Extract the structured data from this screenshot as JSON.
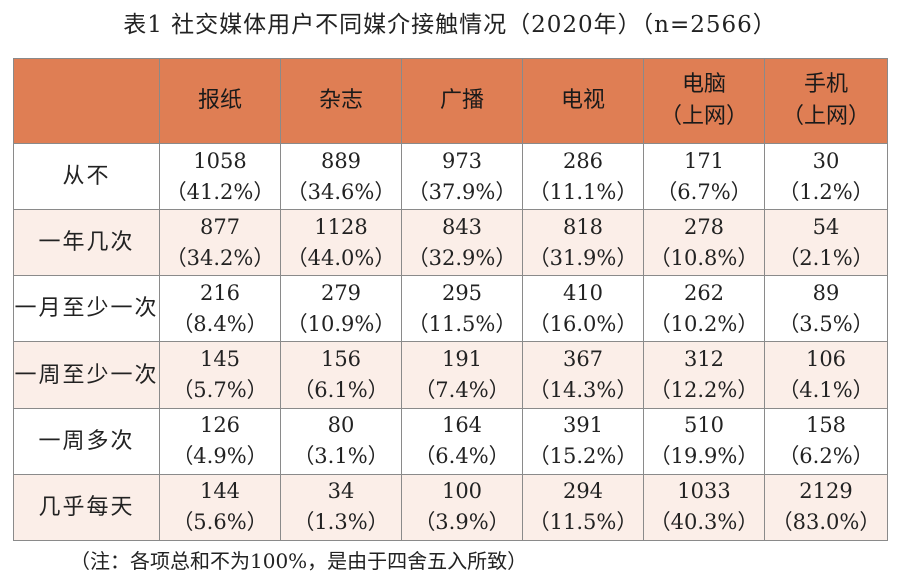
{
  "title": "表1  社交媒体用户不同媒介接触情况（2020年）（n=2566）",
  "columns": [
    {
      "line1": "报纸",
      "line2": ""
    },
    {
      "line1": "杂志",
      "line2": ""
    },
    {
      "line1": "广播",
      "line2": ""
    },
    {
      "line1": "电视",
      "line2": ""
    },
    {
      "line1": "电脑",
      "line2": "（上网）"
    },
    {
      "line1": "手机",
      "line2": "（上网）"
    }
  ],
  "rows": [
    {
      "label": "从不",
      "cells": [
        {
          "n": "1058",
          "p": "（41.2%）"
        },
        {
          "n": "889",
          "p": "（34.6%）"
        },
        {
          "n": "973",
          "p": "（37.9%）"
        },
        {
          "n": "286",
          "p": "（11.1%）"
        },
        {
          "n": "171",
          "p": "（6.7%）"
        },
        {
          "n": "30",
          "p": "（1.2%）"
        }
      ]
    },
    {
      "label": "一年几次",
      "cells": [
        {
          "n": "877",
          "p": "（34.2%）"
        },
        {
          "n": "1128",
          "p": "（44.0%）"
        },
        {
          "n": "843",
          "p": "（32.9%）"
        },
        {
          "n": "818",
          "p": "（31.9%）"
        },
        {
          "n": "278",
          "p": "（10.8%）"
        },
        {
          "n": "54",
          "p": "（2.1%）"
        }
      ]
    },
    {
      "label": "一月至少一次",
      "cells": [
        {
          "n": "216",
          "p": "（8.4%）"
        },
        {
          "n": "279",
          "p": "（10.9%）"
        },
        {
          "n": "295",
          "p": "（11.5%）"
        },
        {
          "n": "410",
          "p": "（16.0%）"
        },
        {
          "n": "262",
          "p": "（10.2%）"
        },
        {
          "n": "89",
          "p": "（3.5%）"
        }
      ]
    },
    {
      "label": "一周至少一次",
      "cells": [
        {
          "n": "145",
          "p": "（5.7%）"
        },
        {
          "n": "156",
          "p": "（6.1%）"
        },
        {
          "n": "191",
          "p": "（7.4%）"
        },
        {
          "n": "367",
          "p": "（14.3%）"
        },
        {
          "n": "312",
          "p": "（12.2%）"
        },
        {
          "n": "106",
          "p": "（4.1%）"
        }
      ]
    },
    {
      "label": "一周多次",
      "cells": [
        {
          "n": "126",
          "p": "（4.9%）"
        },
        {
          "n": "80",
          "p": "（3.1%）"
        },
        {
          "n": "164",
          "p": "（6.4%）"
        },
        {
          "n": "391",
          "p": "（15.2%）"
        },
        {
          "n": "510",
          "p": "（19.9%）"
        },
        {
          "n": "158",
          "p": "（6.2%）"
        }
      ]
    },
    {
      "label": "几乎每天",
      "cells": [
        {
          "n": "144",
          "p": "（5.6%）"
        },
        {
          "n": "34",
          "p": "（1.3%）"
        },
        {
          "n": "100",
          "p": "（3.9%）"
        },
        {
          "n": "294",
          "p": "（11.5%）"
        },
        {
          "n": "1033",
          "p": "（40.3%）"
        },
        {
          "n": "2129",
          "p": "（83.0%）"
        }
      ]
    }
  ],
  "note": "（注：各项总和不为100%，是由于四舍五入所致）",
  "colors": {
    "header": "#df7e54",
    "shaded_row": "#fbeee8",
    "border": "#8a8a8a"
  }
}
